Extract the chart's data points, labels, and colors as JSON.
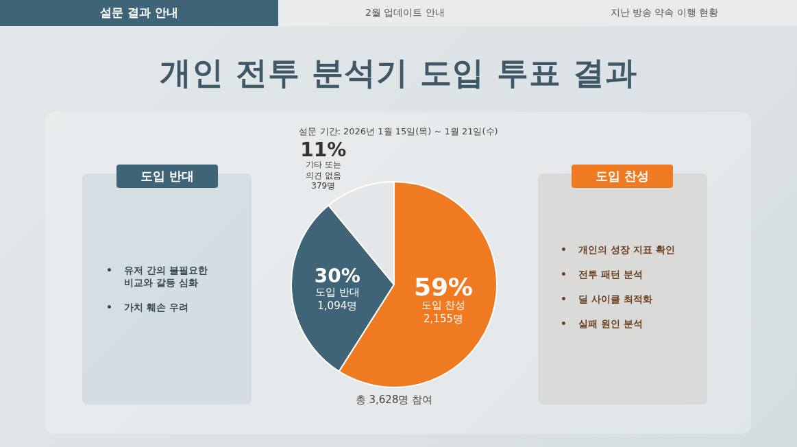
{
  "chart_data": {
    "type": "pie",
    "title": "개인 전투 분석기 도입 투표 결과",
    "subtitle": "설문 기간: 2026년 1월 15일(목) ~ 1월 21일(수)",
    "categories": [
      "도입 찬성",
      "도입 반대",
      "기타 또는 의견 없음"
    ],
    "values": [
      59,
      30,
      11
    ],
    "colors": [
      "#f07a22",
      "#3f6478",
      "#e4e7e9"
    ],
    "value_labels": [
      "59%\n2,155명",
      "30%\n1,094명",
      "11%\n379명"
    ],
    "annotations": [
      "설문 결과 안내",
      "2월 업데이트 안내",
      "지난 방송 약속 이행 현황",
      "총 3,628명 참여",
      "도입 반대",
      "• 유저 간의 불필요한\n비교와 갈등 심화",
      "• 가치 훼손 우려",
      "도입 찬성",
      "• 개인의 성장 지표 확인",
      "• 전투 패턴 분석",
      "• 딜 사이클 최적화",
      "• 실패 원인 분석"
    ]
  }
}
